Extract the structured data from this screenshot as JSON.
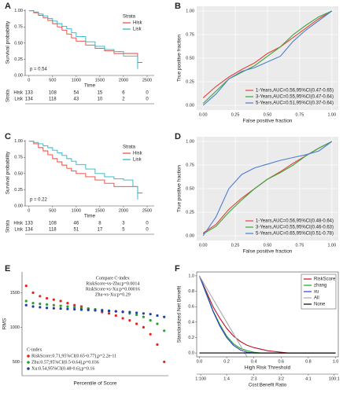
{
  "chart_data": [
    {
      "type": "line",
      "panel": "A",
      "step": true,
      "xlabel": "Time",
      "ylabel": "Survival probability",
      "xlim": [
        -80,
        2650
      ],
      "xticks": [
        0,
        500,
        1000,
        1500,
        2000,
        2500
      ],
      "ylim": [
        0,
        1.02
      ],
      "yticks": [
        {
          "value": 0,
          "label": "0.00"
        },
        {
          "value": 0.25,
          "label": "0.25"
        },
        {
          "value": 0.5,
          "label": "0.50"
        },
        {
          "value": 0.75,
          "label": "0.75"
        },
        {
          "value": 1,
          "label": "1.00"
        }
      ],
      "legend": "upper right",
      "legend_title": "Strata",
      "annotations": [
        "p = 0.54"
      ],
      "series": [
        {
          "name": "Hisk",
          "color": "#e8423a",
          "x": [
            0,
            100,
            200,
            300,
            400,
            500,
            600,
            700,
            800,
            900,
            1000,
            1200,
            1400,
            1600,
            1800,
            2000,
            2200,
            2300,
            2400
          ],
          "values": [
            1,
            0.97,
            0.93,
            0.89,
            0.85,
            0.8,
            0.75,
            0.7,
            0.64,
            0.58,
            0.53,
            0.47,
            0.42,
            0.38,
            0.34,
            0.34,
            0.34,
            0.2,
            0.2
          ]
        },
        {
          "name": "Lisk",
          "color": "#27b4c8",
          "x": [
            0,
            100,
            200,
            300,
            400,
            500,
            600,
            700,
            800,
            900,
            1000,
            1200,
            1400,
            1600,
            1800,
            2000,
            2200,
            2300
          ],
          "values": [
            1,
            0.98,
            0.95,
            0.92,
            0.88,
            0.84,
            0.8,
            0.76,
            0.72,
            0.66,
            0.6,
            0.52,
            0.45,
            0.4,
            0.37,
            0.3,
            0.3,
            0.1
          ]
        }
      ],
      "risk_table": {
        "label": "Strata",
        "rows": [
          [
            133,
            108,
            54,
            15,
            6,
            0
          ],
          [
            134,
            118,
            43,
            10,
            2,
            0
          ]
        ]
      }
    },
    {
      "type": "line",
      "panel": "B",
      "grid": true,
      "xlabel": "False positive fraction",
      "ylabel": "True positive fraction",
      "xlim": [
        -0.05,
        1.05
      ],
      "xticks": [
        {
          "value": 0,
          "label": "0.00"
        },
        {
          "value": 0.25,
          "label": "0.25"
        },
        {
          "value": 0.5,
          "label": "0.50"
        },
        {
          "value": 0.75,
          "label": "0.75"
        },
        {
          "value": 1,
          "label": "1.00"
        }
      ],
      "ylim": [
        -0.05,
        1.05
      ],
      "yticks": [
        {
          "value": 0,
          "label": "0.00"
        },
        {
          "value": 0.25,
          "label": "0.25"
        },
        {
          "value": 0.5,
          "label": "0.50"
        },
        {
          "value": 0.75,
          "label": "0.75"
        },
        {
          "value": 1,
          "label": "1.00"
        }
      ],
      "legend": "lower right",
      "x": [
        0,
        0.1,
        0.2,
        0.3,
        0.4,
        0.5,
        0.6,
        0.7,
        0.8,
        0.9,
        1
      ],
      "series": [
        {
          "name": "1-Years,AUC=0.56,95%CI(0.47-0.65)",
          "color": "#e8423a",
          "values": [
            0.08,
            0.2,
            0.3,
            0.38,
            0.45,
            0.55,
            0.62,
            0.72,
            0.82,
            0.92,
            1
          ]
        },
        {
          "name": "3-Years,AUC=0.55,95%CI(0.47-0.64)",
          "color": "#3aa63a",
          "values": [
            0.02,
            0.15,
            0.28,
            0.35,
            0.42,
            0.52,
            0.62,
            0.75,
            0.85,
            0.94,
            1
          ]
        },
        {
          "name": "5-Years,AUC=0.51,95%CI(0.37-0.64)",
          "color": "#4a7fd0",
          "values": [
            0,
            0.12,
            0.28,
            0.36,
            0.4,
            0.46,
            0.52,
            0.68,
            0.8,
            0.9,
            1
          ]
        }
      ]
    },
    {
      "type": "line",
      "panel": "C",
      "step": true,
      "xlabel": "Time",
      "ylabel": "Survival probability",
      "xlim": [
        -80,
        2650
      ],
      "xticks": [
        0,
        500,
        1000,
        1500,
        2000,
        2500
      ],
      "ylim": [
        0,
        1.02
      ],
      "yticks": [
        {
          "value": 0,
          "label": "0.00"
        },
        {
          "value": 0.25,
          "label": "0.25"
        },
        {
          "value": 0.5,
          "label": "0.50"
        },
        {
          "value": 0.75,
          "label": "0.75"
        },
        {
          "value": 1,
          "label": "1.00"
        }
      ],
      "legend": "upper right",
      "legend_title": "Strata",
      "annotations": [
        "p = 0.22"
      ],
      "series": [
        {
          "name": "Hisk",
          "color": "#e8423a",
          "x": [
            0,
            100,
            200,
            300,
            400,
            500,
            600,
            700,
            800,
            900,
            1000,
            1200,
            1400,
            1600,
            1800,
            2000,
            2200,
            2300,
            2400
          ],
          "values": [
            1,
            0.96,
            0.9,
            0.85,
            0.79,
            0.73,
            0.68,
            0.63,
            0.58,
            0.54,
            0.5,
            0.45,
            0.4,
            0.35,
            0.3,
            0.3,
            0.3,
            0.2,
            0.2
          ]
        },
        {
          "name": "Lisk",
          "color": "#27b4c8",
          "x": [
            0,
            100,
            200,
            300,
            400,
            500,
            600,
            700,
            800,
            900,
            1000,
            1200,
            1400,
            1600,
            1800,
            2000,
            2200,
            2300
          ],
          "values": [
            1,
            0.98,
            0.96,
            0.93,
            0.9,
            0.86,
            0.82,
            0.78,
            0.73,
            0.69,
            0.64,
            0.57,
            0.5,
            0.45,
            0.42,
            0.4,
            0.3,
            0.1
          ]
        }
      ],
      "risk_table": {
        "label": "Strata",
        "rows": [
          [
            133,
            108,
            46,
            8,
            3,
            0
          ],
          [
            134,
            118,
            51,
            17,
            5,
            0
          ]
        ]
      }
    },
    {
      "type": "line",
      "panel": "D",
      "grid": true,
      "xlabel": "False positive fraction",
      "ylabel": "True positive fraction",
      "xlim": [
        -0.05,
        1.05
      ],
      "xticks": [
        {
          "value": 0,
          "label": "0.00"
        },
        {
          "value": 0.25,
          "label": "0.25"
        },
        {
          "value": 0.5,
          "label": "0.50"
        },
        {
          "value": 0.75,
          "label": "0.75"
        },
        {
          "value": 1,
          "label": "1.00"
        }
      ],
      "ylim": [
        -0.05,
        1.05
      ],
      "yticks": [
        {
          "value": 0,
          "label": "0.00"
        },
        {
          "value": 0.25,
          "label": "0.25"
        },
        {
          "value": 0.5,
          "label": "0.50"
        },
        {
          "value": 0.75,
          "label": "0.75"
        },
        {
          "value": 1,
          "label": "1.00"
        }
      ],
      "legend": "lower right",
      "x": [
        0,
        0.1,
        0.2,
        0.3,
        0.4,
        0.5,
        0.6,
        0.7,
        0.8,
        0.9,
        1
      ],
      "series": [
        {
          "name": "1-Years,AUC=0.56,95%CI(0.48-0.64)",
          "color": "#e8423a",
          "values": [
            0.03,
            0.12,
            0.28,
            0.4,
            0.5,
            0.6,
            0.68,
            0.77,
            0.85,
            0.93,
            1
          ]
        },
        {
          "name": "3-Years,AUC=0.55,95%CI(0.46-0.63)",
          "color": "#3aa63a",
          "values": [
            0.02,
            0.1,
            0.25,
            0.38,
            0.5,
            0.6,
            0.67,
            0.75,
            0.85,
            0.93,
            1
          ]
        },
        {
          "name": "5-Years,AUC=0.65,95%CI(0.51-0.78)",
          "color": "#4a7fd0",
          "values": [
            0,
            0.2,
            0.5,
            0.65,
            0.72,
            0.76,
            0.8,
            0.83,
            0.86,
            0.9,
            1
          ]
        }
      ]
    },
    {
      "type": "scatter",
      "panel": "E",
      "xlabel": "Percentile of Score",
      "ylabel": "RMS",
      "xlim": [
        -0.03,
        1.03
      ],
      "ylim": [
        300,
        1800
      ],
      "yticks": [
        500,
        1000,
        1500
      ],
      "legend": "lower left",
      "legend_title": "C-index",
      "annotations": [
        "Compare C-index",
        "RiskScore-vs-Zhu:p=0.0014",
        "RiskScore-vs-Xu:p=0.00016",
        "Zhu-vs-Xu:p=0.29"
      ],
      "x": [
        0,
        0.05,
        0.1,
        0.15,
        0.2,
        0.25,
        0.3,
        0.35,
        0.4,
        0.45,
        0.5,
        0.55,
        0.6,
        0.65,
        0.7,
        0.75,
        0.8,
        0.85,
        0.9,
        0.95,
        1
      ],
      "series": [
        {
          "name": "RiskScore:0.71,95%CI(0.65-0.77),p=2.2e-11",
          "color": "#e8231c",
          "values": [
            1600,
            1500,
            1450,
            1420,
            1400,
            1380,
            1350,
            1320,
            1300,
            1270,
            1250,
            1220,
            1200,
            1170,
            1130,
            1100,
            1050,
            1000,
            900,
            750,
            500
          ]
        },
        {
          "name": "Zhu:0.57,95%CI(0.5-0.64),p=0.036",
          "color": "#2ca02c",
          "values": [
            1380,
            1350,
            1340,
            1330,
            1320,
            1310,
            1300,
            1290,
            1280,
            1270,
            1260,
            1250,
            1240,
            1230,
            1220,
            1200,
            1180,
            1150,
            1100,
            1050,
            950
          ]
        },
        {
          "name": "Xu:0.54,95%CI(0.48-0.6),p=0.16",
          "color": "#1f3fa8",
          "values": [
            1320,
            1300,
            1290,
            1280,
            1275,
            1270,
            1265,
            1260,
            1255,
            1250,
            1245,
            1240,
            1235,
            1230,
            1225,
            1220,
            1210,
            1200,
            1190,
            1170,
            1150
          ]
        }
      ]
    },
    {
      "type": "line",
      "panel": "F",
      "xlabel": "High Risk Threshold",
      "ylabel": "Standardized Net Benefit",
      "xlim": [
        -0.02,
        1.02
      ],
      "xticks": [
        {
          "value": 0,
          "label": "0.0"
        },
        {
          "value": 0.2,
          "label": "0.2"
        },
        {
          "value": 0.4,
          "label": "0.4"
        },
        {
          "value": 0.6,
          "label": "0.6"
        },
        {
          "value": 0.8,
          "label": "0.8"
        },
        {
          "value": 1,
          "label": "1.0"
        }
      ],
      "x2label": "Cost:Benefit Ratio",
      "x2ticks": [
        {
          "value": 0.01,
          "label": "1:100"
        },
        {
          "value": 0.2,
          "label": "1:4"
        },
        {
          "value": 0.4,
          "label": "2:3"
        },
        {
          "value": 0.6,
          "label": "3:2"
        },
        {
          "value": 0.8,
          "label": "4:1"
        },
        {
          "value": 0.99,
          "label": "100:1"
        }
      ],
      "ylim": [
        -0.05,
        1.05
      ],
      "yticks": [
        {
          "value": 0,
          "label": "0.0"
        },
        {
          "value": 0.2,
          "label": "0.2"
        },
        {
          "value": 0.4,
          "label": "0.4"
        },
        {
          "value": 0.6,
          "label": "0.6"
        },
        {
          "value": 0.8,
          "label": "0.8"
        },
        {
          "value": 1,
          "label": "1.0"
        }
      ],
      "legend": "upper right",
      "legend_frame": true,
      "x": [
        0,
        0.05,
        0.1,
        0.15,
        0.2,
        0.25,
        0.3,
        0.35,
        0.4,
        0.45,
        0.5,
        0.55,
        0.6,
        0.65,
        0.7,
        0.75,
        0.8,
        0.85,
        0.9,
        0.95,
        1
      ],
      "series": [
        {
          "name": "RiskScore",
          "color": "#c0102a",
          "values": [
            1,
            0.8,
            0.6,
            0.45,
            0.32,
            0.22,
            0.15,
            0.1,
            0.07,
            0.05,
            0.03,
            0.02,
            0.01,
            0,
            0,
            0,
            0,
            0,
            0,
            0,
            0
          ]
        },
        {
          "name": "zhang",
          "color": "#1fa31f",
          "values": [
            1,
            0.78,
            0.55,
            0.37,
            0.22,
            0.12,
            0.06,
            0.03,
            0.01,
            0,
            0,
            0,
            0,
            0,
            0,
            0,
            0,
            0,
            0,
            0,
            0
          ]
        },
        {
          "name": "xu",
          "color": "#2a3fd0",
          "values": [
            1,
            0.77,
            0.54,
            0.35,
            0.2,
            0.1,
            0.04,
            0.01,
            0,
            0,
            0,
            0,
            0,
            0,
            0,
            0,
            0,
            0,
            0,
            0,
            0
          ]
        },
        {
          "name": "All",
          "color": "#aaaaaa",
          "values": [
            1,
            0.85,
            0.7,
            0.55,
            0.4,
            0.25,
            0.1,
            -0.05,
            null,
            null,
            null,
            null,
            null,
            null,
            null,
            null,
            null,
            null,
            null,
            null,
            null
          ]
        },
        {
          "name": "None",
          "color": "#000000",
          "values": [
            0,
            0,
            0,
            0,
            0,
            0,
            0,
            0,
            0,
            0,
            0,
            0,
            0,
            0,
            0,
            0,
            0,
            0,
            0,
            0,
            0
          ]
        }
      ]
    }
  ]
}
